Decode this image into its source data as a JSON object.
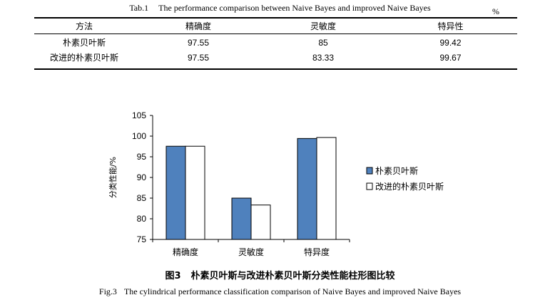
{
  "table": {
    "caption_label": "Tab.1",
    "caption_text": "The performance comparison between Naive Bayes and improved Naive Bayes",
    "unit": "%",
    "headers": [
      "方法",
      "精确度",
      "灵敏度",
      "特异性"
    ],
    "rows": [
      [
        "朴素贝叶斯",
        "97.55",
        "85",
        "99.42"
      ],
      [
        "改进的朴素贝叶斯",
        "97.55",
        "83.33",
        "99.67"
      ]
    ]
  },
  "chart_data": {
    "type": "bar",
    "title": "",
    "xlabel": "",
    "ylabel": "分类性能/%",
    "categories": [
      "精确度",
      "灵敏度",
      "特异度"
    ],
    "series": [
      {
        "name": "朴素贝叶斯",
        "values": [
          97.55,
          85,
          99.42
        ],
        "color": "#4f81bd"
      },
      {
        "name": "改进的朴素贝叶斯",
        "values": [
          97.55,
          83.33,
          99.67
        ],
        "color": "#ffffff"
      }
    ],
    "ylim": [
      75,
      105
    ],
    "yticks": [
      "75",
      "80",
      "85",
      "90",
      "95",
      "100",
      "105"
    ],
    "grid": false,
    "legend_position": "right"
  },
  "figure": {
    "caption_label": "图3",
    "caption_text": "朴素贝叶斯与改进朴素贝叶斯分类性能柱形图比较",
    "caption_en_label": "Fig.3",
    "caption_en_text": "The cylindrical performance classification comparison of Naive Bayes and improved Naive Bayes"
  }
}
